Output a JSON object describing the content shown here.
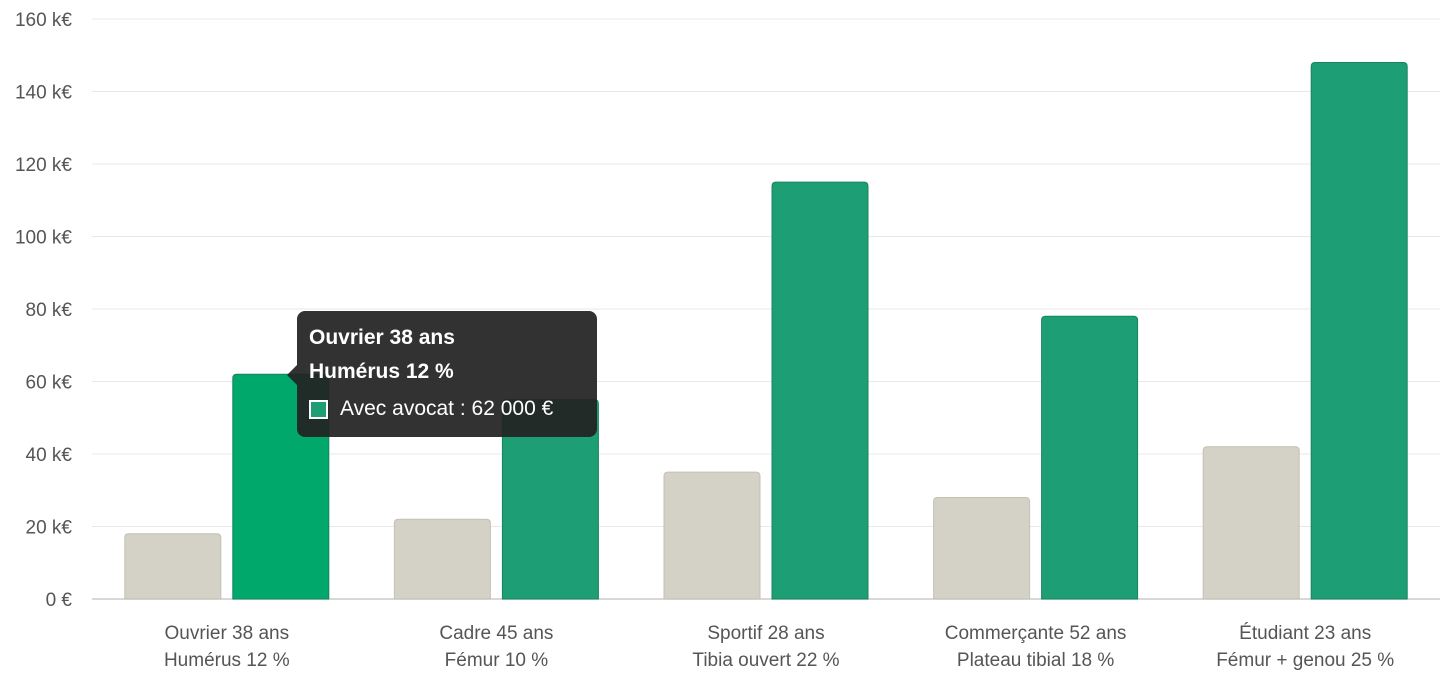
{
  "chart_data": {
    "type": "bar",
    "categories": [
      [
        "Ouvrier 38 ans",
        "Humérus 12 %"
      ],
      [
        "Cadre 45 ans",
        "Fémur 10 %"
      ],
      [
        "Sportif 28 ans",
        "Tibia ouvert 22 %"
      ],
      [
        "Commerçante 52 ans",
        "Plateau tibial 18 %"
      ],
      [
        "Étudiant 23 ans",
        "Fémur + genou 25 %"
      ]
    ],
    "series": [
      {
        "values": [
          18,
          22,
          35,
          28,
          42
        ],
        "color": "#d4d1c7"
      },
      {
        "name": "Avec avocat",
        "values": [
          62,
          55,
          115,
          78,
          148
        ],
        "color": "#1e9e74",
        "highlight_color": "#00a86b"
      }
    ],
    "y_unit": "k€",
    "ylim": [
      0,
      160
    ],
    "yticks": [
      0,
      20,
      40,
      60,
      80,
      100,
      120,
      140,
      160
    ],
    "ytick_labels": [
      "0 €",
      "20 k€",
      "40 k€",
      "60 k€",
      "80 k€",
      "100 k€",
      "120 k€",
      "140 k€",
      "160 k€"
    ],
    "grid": true,
    "legend": "none"
  },
  "tooltip": {
    "title_line1": "Ouvrier 38 ans",
    "title_line2": "Humérus 12 %",
    "item_text": "Avec avocat : 62 000 €",
    "swatch_color": "#1e9e74"
  }
}
